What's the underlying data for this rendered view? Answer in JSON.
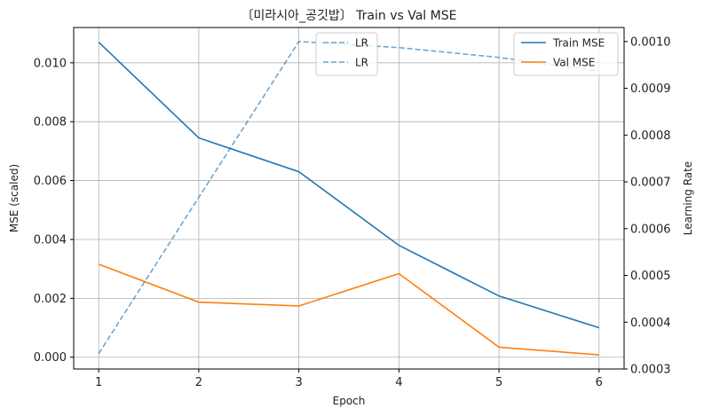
{
  "chart_data": {
    "type": "line",
    "title": "〔미라시아_공깃밥〕 Train vs Val MSE",
    "xlabel": "Epoch",
    "ylabel": "MSE (scaled)",
    "y2label": "Learning Rate",
    "x": [
      1,
      2,
      3,
      4,
      5,
      6
    ],
    "xlim": [
      0.75,
      6.25
    ],
    "ylim": [
      -0.0004,
      0.0112
    ],
    "y2lim": [
      0.0003,
      0.00103
    ],
    "xticks": [
      "1",
      "2",
      "3",
      "4",
      "5",
      "6"
    ],
    "yticks": [
      "0.000",
      "0.002",
      "0.004",
      "0.006",
      "0.008",
      "0.010"
    ],
    "y2ticks": [
      "0.0003",
      "0.0004",
      "0.0005",
      "0.0006",
      "0.0007",
      "0.0008",
      "0.0009",
      "0.0010"
    ],
    "grid": true,
    "series": [
      {
        "name": "Train MSE",
        "axis": "left",
        "color": "#1f77b4",
        "style": "solid",
        "values": [
          0.0107,
          0.00745,
          0.0063,
          0.0038,
          0.00208,
          0.001
        ]
      },
      {
        "name": "Val MSE",
        "axis": "left",
        "color": "#ff7f0e",
        "style": "solid",
        "values": [
          0.00316,
          0.00187,
          0.00174,
          0.00284,
          0.00034,
          8e-05
        ]
      },
      {
        "name": "LR",
        "axis": "right",
        "color": "#1f77b4",
        "style": "dashed",
        "values": [
          0.000333,
          0.000667,
          0.001,
          0.000987,
          0.000966,
          0.000937
        ]
      }
    ],
    "legends": [
      {
        "position": "upper-center",
        "entries": [
          "LR",
          "LR"
        ]
      },
      {
        "position": "upper-right",
        "entries": [
          "Train MSE",
          "Val MSE"
        ]
      }
    ]
  }
}
